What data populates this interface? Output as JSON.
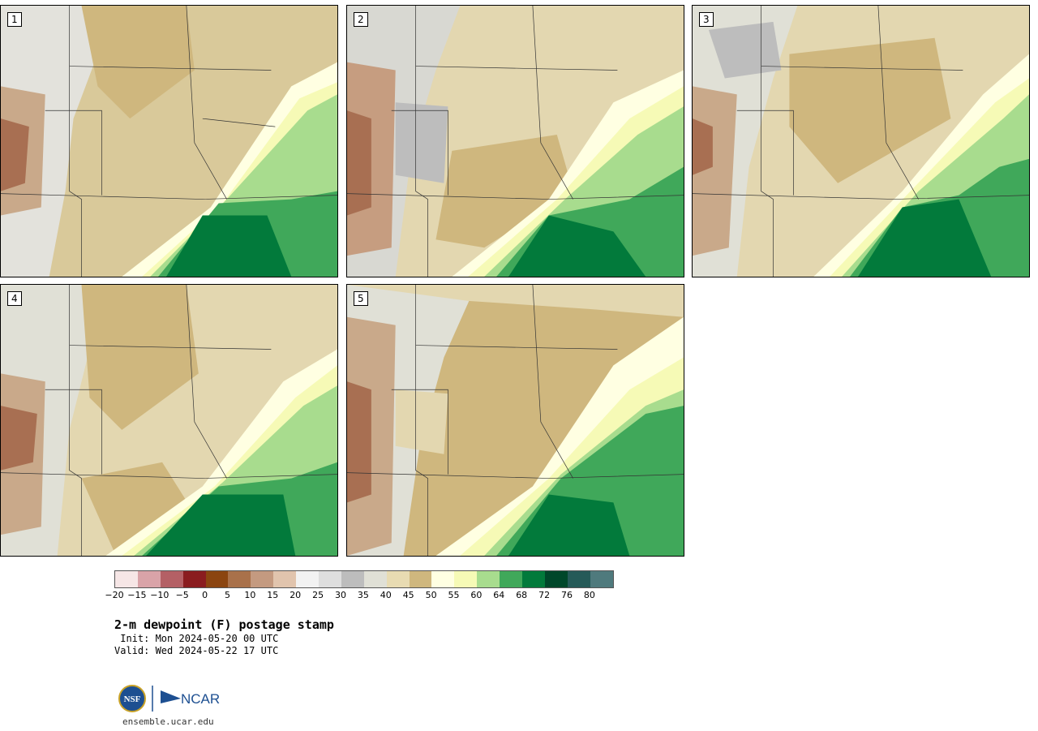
{
  "panels": [
    {
      "label": "1"
    },
    {
      "label": "2"
    },
    {
      "label": "3"
    },
    {
      "label": "4"
    },
    {
      "label": "5"
    }
  ],
  "colorbar": {
    "colors": [
      "#f6e6e6",
      "#d9a3a8",
      "#b46065",
      "#8a1c1f",
      "#8b4510",
      "#a9714a",
      "#c49a80",
      "#e1c4ad",
      "#f2f2f2",
      "#dedede",
      "#bdbdbd",
      "#e0e0d6",
      "#e8dbb2",
      "#cfb77e",
      "#ffffe2",
      "#f6fab6",
      "#a8dc8e",
      "#40a85a",
      "#027a3b",
      "#00472a",
      "#255a58",
      "#4f7a7d"
    ],
    "ticks": [
      "−20",
      "−15",
      "−10",
      "−5",
      "0",
      "5",
      "10",
      "15",
      "20",
      "25",
      "30",
      "35",
      "40",
      "45",
      "50",
      "55",
      "60",
      "64",
      "68",
      "72",
      "76",
      "80"
    ]
  },
  "title": "2-m dewpoint (F) postage stamp",
  "init": " Init: Mon 2024-05-20 00 UTC",
  "valid": "Valid: Wed 2024-05-22 17 UTC",
  "logos": {
    "nsf": "NSF",
    "ncar": "NCAR"
  },
  "site": "ensemble.ucar.edu"
}
